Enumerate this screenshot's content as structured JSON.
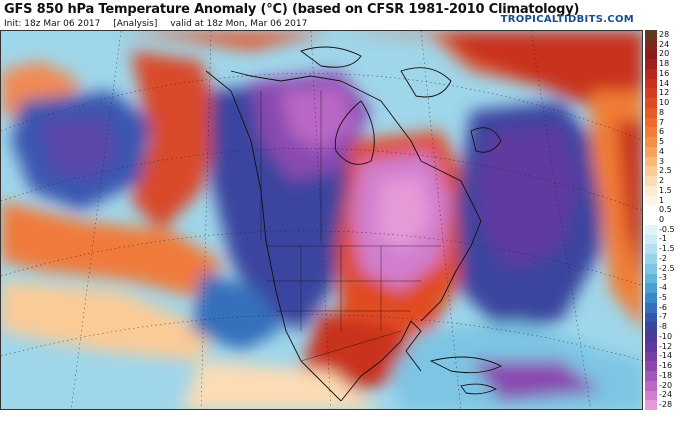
{
  "header": {
    "title": "GFS 850 hPa Temperature Anomaly (°C) (based on CFSR 1981-2010 Climatology)",
    "init": "Init: 18z Mar 06 2017",
    "analysis": "[Analysis]",
    "valid": "valid at 18z Mon, Mar 06 2017",
    "brand": "TROPICALTIDBITS.COM"
  },
  "map": {
    "field": "850 hPa temperature anomaly",
    "region": "North America and adjacent oceans"
  },
  "colorbar": {
    "levels": [
      "28",
      "24",
      "20",
      "18",
      "16",
      "14",
      "12",
      "10",
      "8",
      "7",
      "6",
      "5",
      "4",
      "3",
      "2.5",
      "2",
      "1.5",
      "1",
      "0.5",
      "0",
      "-0.5",
      "-1",
      "-1.5",
      "-2",
      "-2.5",
      "-3",
      "-4",
      "-5",
      "-6",
      "-7",
      "-8",
      "-10",
      "-12",
      "-14",
      "-16",
      "-18",
      "-20",
      "-24",
      "-28"
    ],
    "colors": [
      "#5e3a1f",
      "#7a2a1e",
      "#8c1b1b",
      "#a31e1e",
      "#b8261f",
      "#c9311f",
      "#d63d20",
      "#e04b22",
      "#e85b26",
      "#ef6b2c",
      "#f27d35",
      "#f58f45",
      "#f7a35c",
      "#f9b878",
      "#fbcb96",
      "#fcdcb5",
      "#fdebd2",
      "#fdf4e6",
      "#ffffff",
      "#ffffff",
      "#e3f3fa",
      "#cdebf6",
      "#b3e0f1",
      "#98d3ea",
      "#7dc5e3",
      "#62b4db",
      "#4aa0d2",
      "#3b88c7",
      "#3470bb",
      "#3058ad",
      "#3a449f",
      "#4a3a9a",
      "#5e3aa0",
      "#7440a8",
      "#8a49b1",
      "#a157bb",
      "#b867c4",
      "#d07ece",
      "#e59ad8"
    ]
  }
}
